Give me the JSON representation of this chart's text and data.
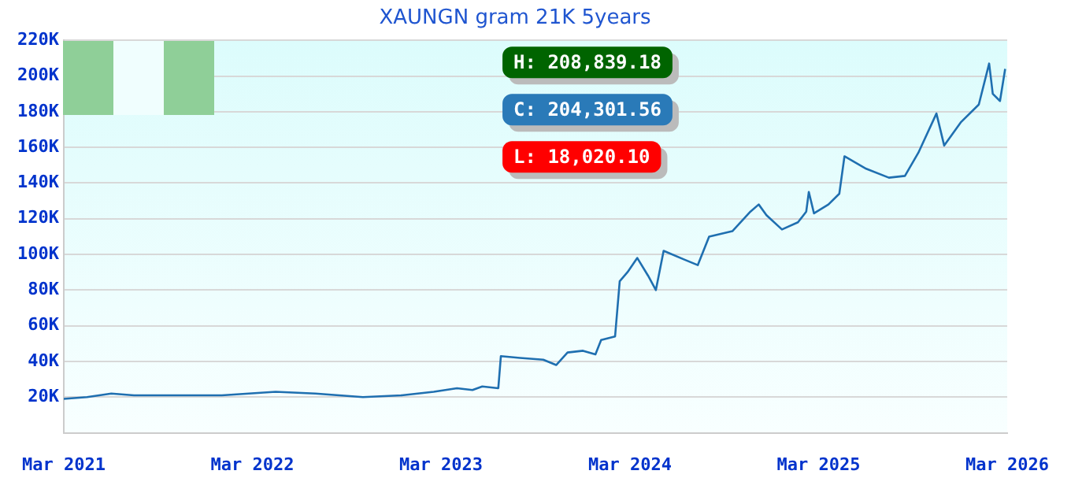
{
  "chart_data": {
    "type": "line",
    "title": "XAUNGN gram 21K 5years",
    "x": [
      "2021-03-01",
      "2021-04-15",
      "2021-06-01",
      "2021-07-15",
      "2022-01-01",
      "2022-04-15",
      "2022-07-01",
      "2022-10-01",
      "2022-12-15",
      "2023-02-15",
      "2023-04-01",
      "2023-05-01",
      "2023-05-20",
      "2023-06-20",
      "2023-06-25",
      "2023-08-01",
      "2023-09-15",
      "2023-10-10",
      "2023-11-01",
      "2023-12-01",
      "2023-12-25",
      "2024-01-05",
      "2024-02-01",
      "2024-02-10",
      "2024-02-25",
      "2024-03-15",
      "2024-04-05",
      "2024-04-20",
      "2024-05-05",
      "2024-06-15",
      "2024-07-10",
      "2024-08-01",
      "2024-09-15",
      "2024-10-20",
      "2024-11-05",
      "2024-11-20",
      "2024-12-20",
      "2025-01-20",
      "2025-02-05",
      "2025-02-10",
      "2025-02-20",
      "2025-03-20",
      "2025-04-10",
      "2025-04-20",
      "2025-06-01",
      "2025-07-15",
      "2025-08-15",
      "2025-09-10",
      "2025-10-15",
      "2025-10-30",
      "2025-12-01",
      "2026-01-05",
      "2026-01-25",
      "2026-02-01",
      "2026-02-15",
      "2026-02-25"
    ],
    "values": [
      19000,
      20000,
      22000,
      21000,
      21000,
      23000,
      22000,
      20000,
      21000,
      23000,
      25000,
      24000,
      26000,
      25000,
      43000,
      42000,
      41000,
      38000,
      45000,
      46000,
      44000,
      52000,
      54000,
      85000,
      90000,
      98000,
      88000,
      80000,
      102000,
      97000,
      94000,
      110000,
      113000,
      124000,
      128000,
      122000,
      114000,
      118000,
      124000,
      135000,
      123000,
      128000,
      134000,
      155000,
      148000,
      143000,
      144000,
      157000,
      179000,
      161000,
      174000,
      184000,
      207000,
      190000,
      186000,
      204000
    ],
    "color": "#1f6fb0",
    "xlim": [
      "2021-03-01",
      "2026-03-01"
    ],
    "xticks": [
      {
        "value": "2021-03-01",
        "label": "Mar 2021"
      },
      {
        "value": "2022-03-01",
        "label": "Mar 2022"
      },
      {
        "value": "2023-03-01",
        "label": "Mar 2023"
      },
      {
        "value": "2024-03-01",
        "label": "Mar 2024"
      },
      {
        "value": "2025-03-01",
        "label": "Mar 2025"
      },
      {
        "value": "2026-03-01",
        "label": "Mar 2026"
      }
    ],
    "ylim": [
      0,
      220000
    ],
    "yticks": [
      {
        "value": 20000,
        "label": "20K"
      },
      {
        "value": 40000,
        "label": "40K"
      },
      {
        "value": 60000,
        "label": "60K"
      },
      {
        "value": 80000,
        "label": "80K"
      },
      {
        "value": 100000,
        "label": "100K"
      },
      {
        "value": 120000,
        "label": "120K"
      },
      {
        "value": 140000,
        "label": "140K"
      },
      {
        "value": 160000,
        "label": "160K"
      },
      {
        "value": 180000,
        "label": "180K"
      },
      {
        "value": 200000,
        "label": "200K"
      },
      {
        "value": 220000,
        "label": "220K"
      }
    ],
    "grid": "y",
    "legend": false,
    "marker": "none",
    "line_style": "solid",
    "annotations": [
      "H: 208,839.18",
      "C: 204,301.56",
      "L: 18,020.10"
    ]
  }
}
